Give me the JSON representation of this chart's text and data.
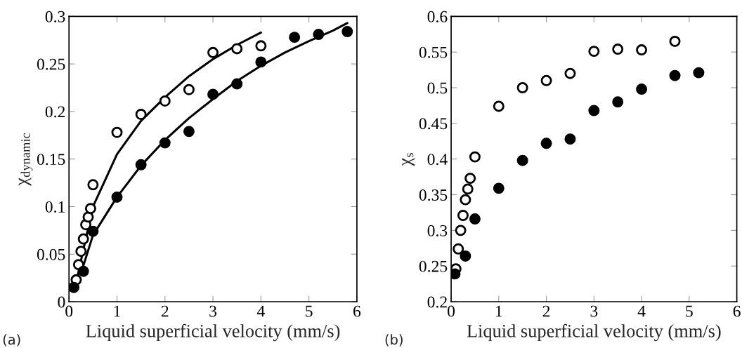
{
  "chart_data": [
    {
      "type": "scatter",
      "xlabel": "Liquid superficial velocity (mm/s)",
      "ylabel": "χ$_{dynamic}$",
      "xlim": [
        0,
        6
      ],
      "ylim": [
        0,
        0.3
      ],
      "xticks": [
        0,
        1,
        2,
        3,
        4,
        5,
        6
      ],
      "yticks": [
        0,
        0.05,
        0.1,
        0.15,
        0.2,
        0.25,
        0.3
      ],
      "marker": "circle",
      "grid": false,
      "legend": false,
      "annotations": [
        "(a)"
      ],
      "series": [
        {
          "color": "#ffffff",
          "x": [
            0.15,
            0.2,
            0.25,
            0.3,
            0.35,
            0.4,
            0.45,
            0.5,
            1,
            1.5,
            2,
            2.5,
            3,
            3.5,
            4
          ],
          "values": [
            0.023,
            0.039,
            0.053,
            0.066,
            0.081,
            0.089,
            0.098,
            0.123,
            0.178,
            0.197,
            0.211,
            0.223,
            0.262,
            0.266,
            0.269
          ]
        },
        {
          "color": "#000000",
          "x": [
            0.1,
            0.3,
            0.5,
            1,
            1.5,
            2,
            2.5,
            3,
            3.5,
            4,
            4.7,
            5.2,
            5.8
          ],
          "values": [
            0.015,
            0.032,
            0.074,
            0.11,
            0.144,
            0.167,
            0.179,
            0.218,
            0.229,
            0.252,
            0.278,
            0.281,
            0.284
          ]
        },
        {
          "type": "line",
          "color": "#000000",
          "marker": "none",
          "x": [
            0.15,
            0.3,
            0.5,
            1,
            1.5,
            2,
            2.5,
            3,
            3.5,
            4
          ],
          "values": [
            0.02,
            0.055,
            0.1,
            0.155,
            0.19,
            0.215,
            0.237,
            0.255,
            0.27,
            0.283
          ]
        },
        {
          "type": "line",
          "color": "#000000",
          "marker": "none",
          "x": [
            0.25,
            0.5,
            1,
            1.5,
            2,
            2.5,
            3,
            3.5,
            4,
            4.5,
            5,
            5.5,
            5.8
          ],
          "values": [
            0.03,
            0.07,
            0.11,
            0.143,
            0.17,
            0.193,
            0.213,
            0.232,
            0.248,
            0.262,
            0.274,
            0.285,
            0.293
          ]
        }
      ]
    },
    {
      "type": "scatter",
      "xlabel": "Liquid superficial velocity (mm/s)",
      "ylabel": "χ$_{s}$",
      "xlim": [
        0,
        6
      ],
      "ylim": [
        0.2,
        0.6
      ],
      "xticks": [
        0,
        1,
        2,
        3,
        4,
        5,
        6
      ],
      "yticks": [
        0.2,
        0.25,
        0.3,
        0.35,
        0.4,
        0.45,
        0.5,
        0.55,
        0.6
      ],
      "marker": "circle",
      "grid": false,
      "legend": false,
      "annotations": [
        "(b)"
      ],
      "series": [
        {
          "color": "#ffffff",
          "x": [
            0.1,
            0.15,
            0.2,
            0.25,
            0.3,
            0.35,
            0.4,
            0.5,
            1,
            1.5,
            2,
            2.5,
            3,
            3.5,
            4,
            4.7
          ],
          "values": [
            0.246,
            0.274,
            0.3,
            0.321,
            0.343,
            0.358,
            0.373,
            0.403,
            0.474,
            0.5,
            0.51,
            0.52,
            0.551,
            0.554,
            0.553,
            0.565
          ]
        },
        {
          "color": "#000000",
          "x": [
            0.08,
            0.3,
            0.5,
            1,
            1.5,
            2,
            2.5,
            3,
            3.5,
            4,
            4.7,
            5.2
          ],
          "values": [
            0.239,
            0.264,
            0.316,
            0.359,
            0.398,
            0.422,
            0.428,
            0.468,
            0.48,
            0.498,
            0.517,
            0.521
          ]
        }
      ]
    }
  ]
}
